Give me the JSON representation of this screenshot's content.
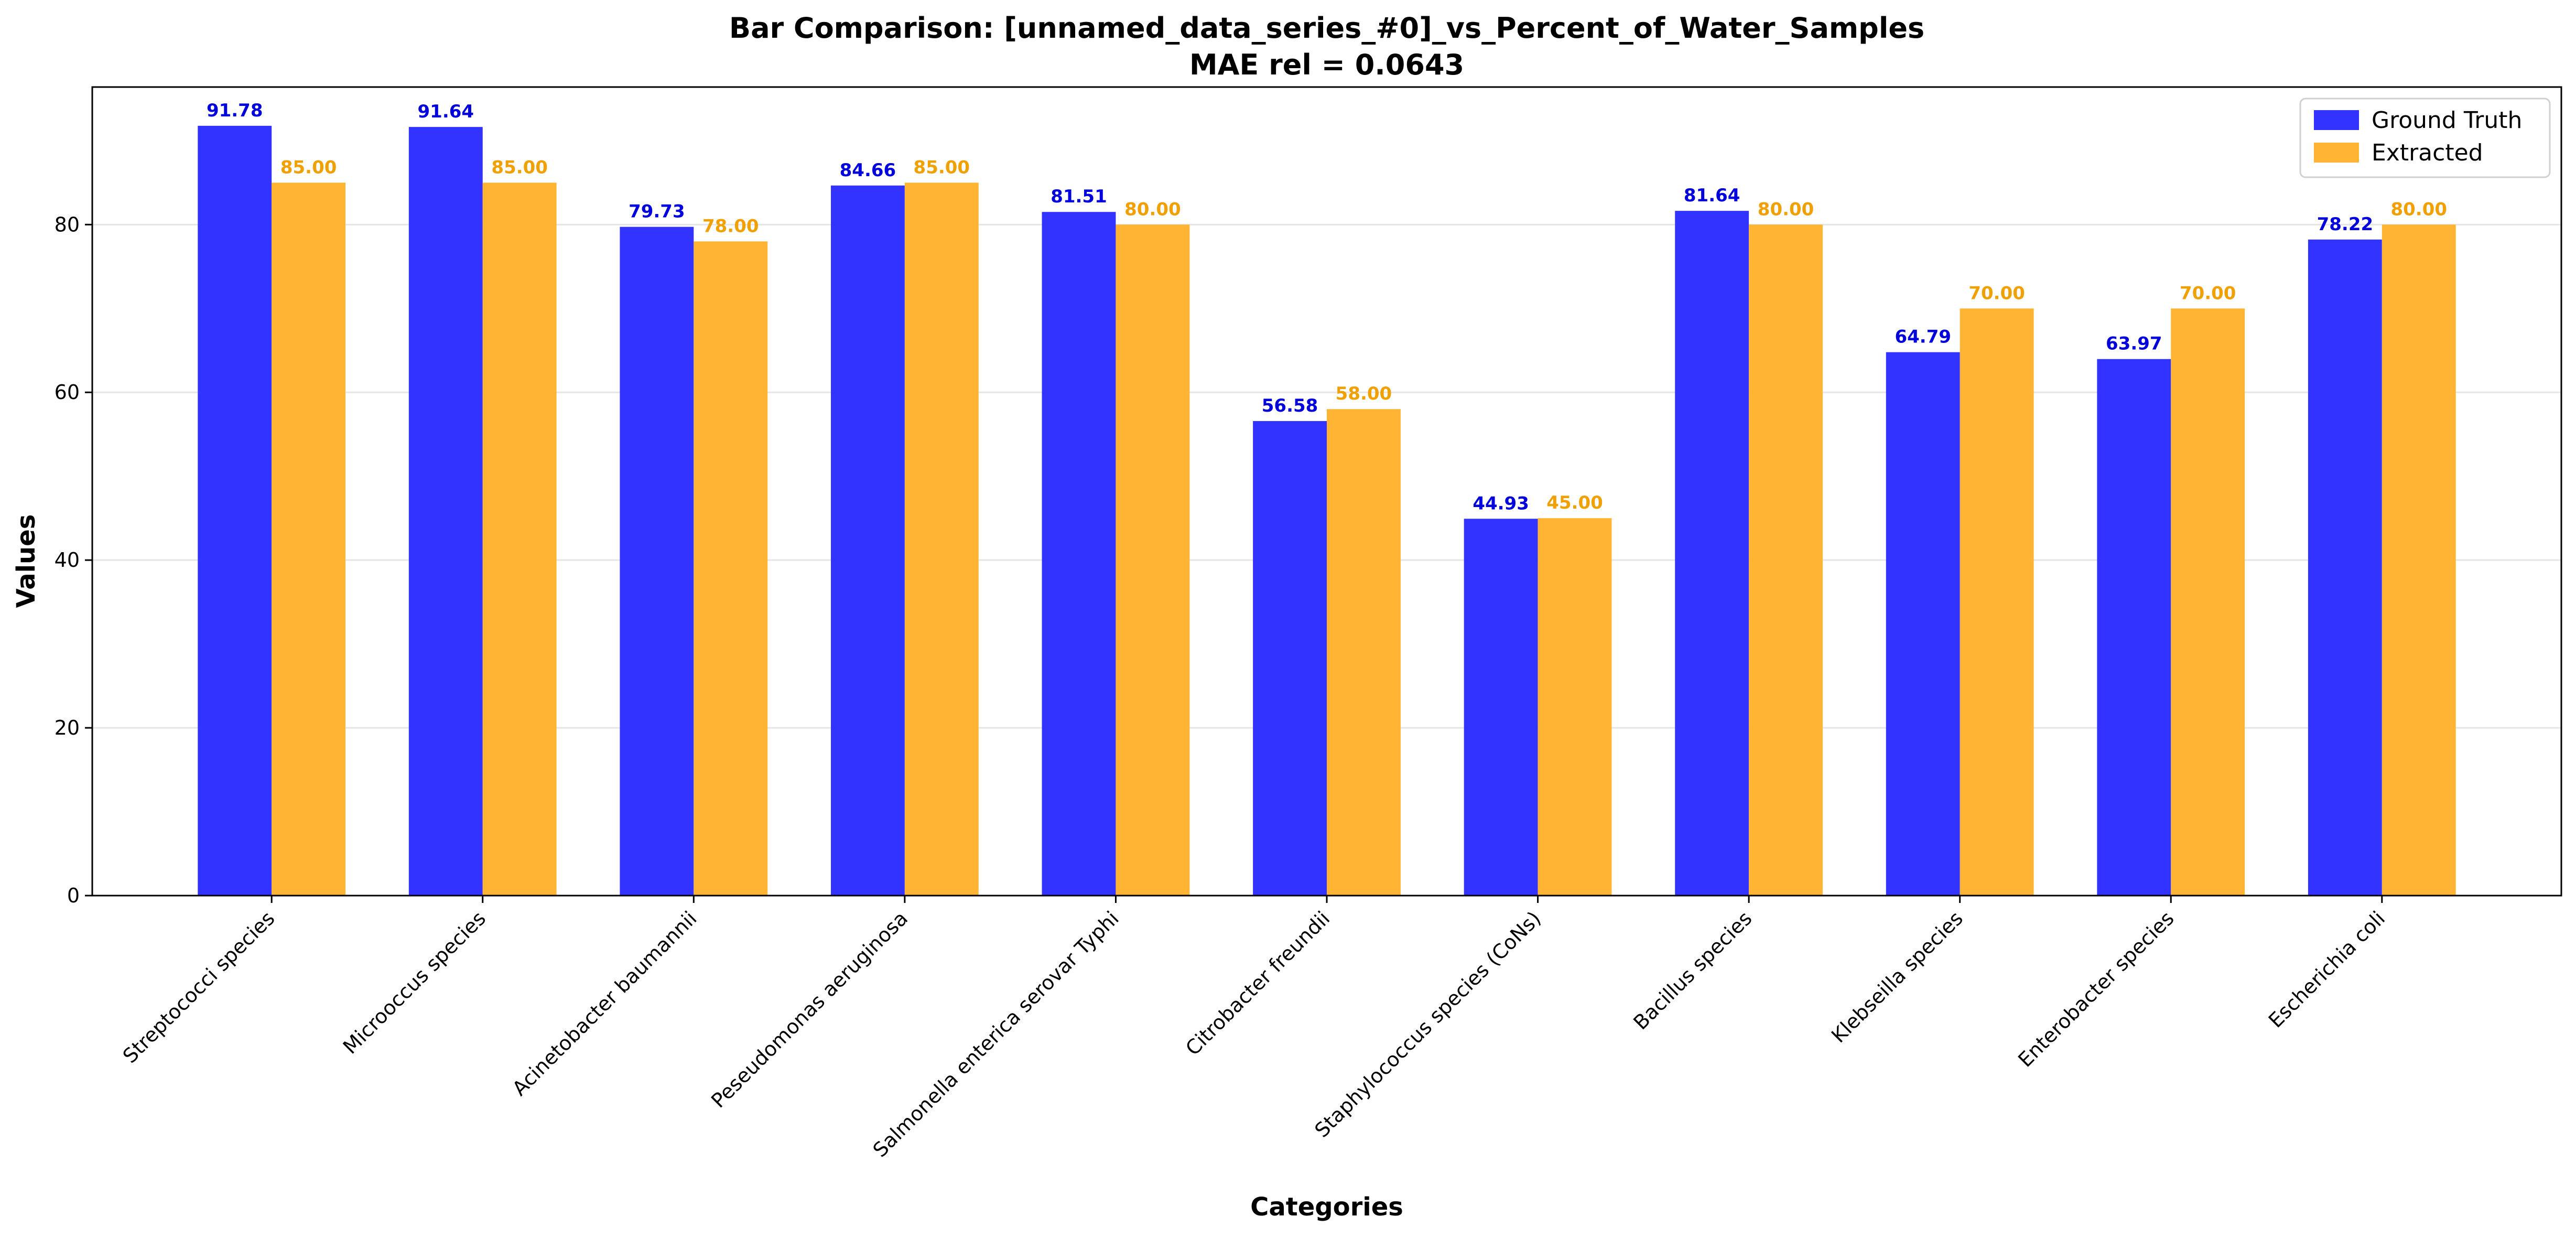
{
  "chart_data": {
    "type": "bar",
    "title": "Bar Comparison: [unnamed_data_series_#0]_vs_Percent_of_Water_Samples",
    "subtitle": "MAE rel = 0.0643",
    "xlabel": "Categories",
    "ylabel": "Values",
    "ylim": [
      0,
      96.4
    ],
    "yticks": [
      0,
      20,
      40,
      60,
      80
    ],
    "grid": "horizontal",
    "legend_position": "top-right",
    "categories": [
      "Streptococci species",
      "Microoccus species",
      "Acinetobacter baumannii",
      "Peseudomonas aeruginosa",
      "Salmonella enterica serovar Typhi",
      "Citrobacter freundii",
      "Staphylococcus species (CoNs)",
      "Bacillus species",
      "Klebseilla species",
      "Enterobacter species",
      "Escherichia coli"
    ],
    "series": [
      {
        "name": "Ground Truth",
        "color": "#3333ff",
        "label_color": "#0000dd",
        "values": [
          91.78,
          91.64,
          79.73,
          84.66,
          81.51,
          56.58,
          44.93,
          81.64,
          64.79,
          63.97,
          78.22
        ],
        "labels": [
          "91.78",
          "91.64",
          "79.73",
          "84.66",
          "81.51",
          "56.58",
          "44.93",
          "81.64",
          "64.79",
          "63.97",
          "78.22"
        ]
      },
      {
        "name": "Extracted",
        "color": "#ffb533",
        "label_color": "#f0a000",
        "values": [
          85,
          85,
          78,
          85,
          80,
          58,
          45,
          80,
          70,
          70,
          80
        ],
        "labels": [
          "85.00",
          "85.00",
          "78.00",
          "85.00",
          "80.00",
          "58.00",
          "45.00",
          "80.00",
          "70.00",
          "70.00",
          "80.00"
        ]
      }
    ]
  }
}
